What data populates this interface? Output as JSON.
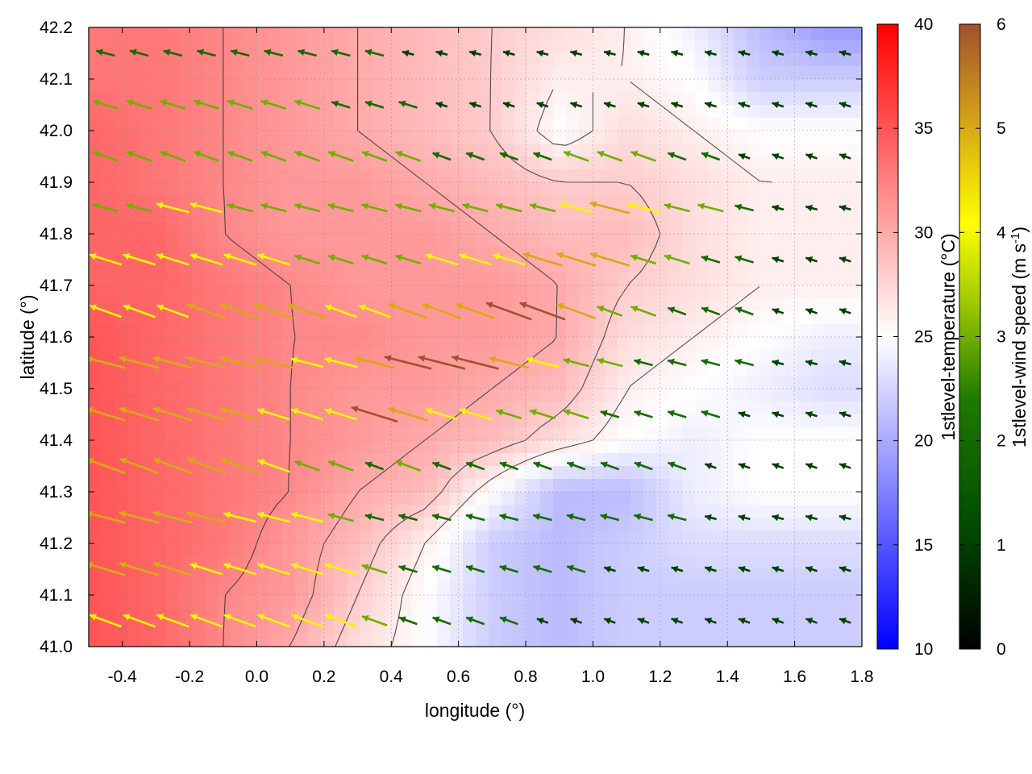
{
  "chart_data": {
    "type": "heatmap",
    "description_overlay": [
      "filled temperature field",
      "black contour lines",
      "colored wind-vector arrows"
    ],
    "xlabel": "longitude (°)",
    "ylabel": "latitude (°)",
    "xlim": [
      -0.5,
      1.8
    ],
    "ylim": [
      41.0,
      42.2
    ],
    "x_ticks": [
      "-0.4",
      "-0.2",
      "0.0",
      "0.2",
      "0.4",
      "0.6",
      "0.8",
      "1.0",
      "1.2",
      "1.4",
      "1.6",
      "1.8"
    ],
    "y_ticks": [
      "41.0",
      "41.1",
      "41.2",
      "41.3",
      "41.4",
      "41.5",
      "41.6",
      "41.7",
      "41.8",
      "41.9",
      "42.0",
      "42.1",
      "42.2"
    ],
    "grid": true,
    "temperature_colorbar": {
      "label": "1stlevel-temperature (°C)",
      "range": [
        10,
        40
      ],
      "ticks": [
        "10",
        "15",
        "20",
        "25",
        "30",
        "35",
        "40"
      ],
      "colors": [
        "#0000ff",
        "#ffffff",
        "#ff0000"
      ]
    },
    "wind_colorbar": {
      "label_main": "1stlevel-wind speed (m s",
      "label_sup": "-1",
      "label_end": ")",
      "range": [
        0,
        6
      ],
      "ticks": [
        "0",
        "1",
        "2",
        "3",
        "4",
        "5",
        "6"
      ],
      "colors": [
        "#000000",
        "#006400",
        "#7ab800",
        "#ffff00",
        "#d4a017",
        "#a0522d"
      ]
    },
    "temperature_field": {
      "grid_lon": [
        -0.5,
        -0.3,
        -0.1,
        0.1,
        0.3,
        0.5,
        0.7,
        0.9,
        1.1,
        1.3,
        1.5,
        1.7
      ],
      "grid_lat": [
        42.2,
        42.1,
        42.0,
        41.9,
        41.8,
        41.7,
        41.6,
        41.5,
        41.4,
        41.3,
        41.2,
        41.1,
        41.0
      ],
      "values": [
        [
          33,
          33,
          32,
          31,
          30,
          29,
          28,
          27,
          26,
          24,
          21,
          19
        ],
        [
          33,
          33,
          32,
          31,
          30,
          29,
          28,
          26,
          26,
          25,
          22,
          22
        ],
        [
          34,
          33,
          32,
          31,
          30,
          29,
          28,
          25,
          27,
          26,
          25,
          25
        ],
        [
          34,
          33,
          32,
          31,
          31,
          30,
          29,
          28,
          28,
          27,
          26,
          26
        ],
        [
          34,
          34,
          32,
          31,
          31,
          31,
          30,
          29,
          29,
          27,
          26,
          26
        ],
        [
          34,
          34,
          33,
          32,
          31,
          31,
          31,
          30,
          28,
          27,
          26,
          26
        ],
        [
          35,
          34,
          33,
          32,
          32,
          31,
          31,
          30,
          27,
          26,
          25,
          24
        ],
        [
          35,
          34,
          33,
          32,
          31,
          31,
          30,
          29,
          26,
          25,
          24,
          23
        ],
        [
          35,
          34,
          33,
          32,
          31,
          30,
          29,
          27,
          25,
          24,
          25,
          25
        ],
        [
          35,
          34,
          33,
          32,
          30,
          29,
          25,
          21,
          21,
          24,
          25,
          25
        ],
        [
          35,
          34,
          33,
          31,
          29,
          26,
          22,
          21,
          22,
          23,
          23,
          23
        ],
        [
          35,
          34,
          32,
          31,
          28,
          25,
          22,
          21,
          22,
          22,
          22,
          22
        ],
        [
          35,
          34,
          32,
          30,
          27,
          25,
          22,
          21,
          22,
          22,
          22,
          22
        ]
      ]
    },
    "wind_vectors": {
      "columns_lon": [
        -0.45,
        -0.35,
        -0.25,
        -0.15,
        -0.05,
        0.05,
        0.15,
        0.25,
        0.35,
        0.45,
        0.55,
        0.65,
        0.75,
        0.85,
        0.95,
        1.05,
        1.15,
        1.25,
        1.35,
        1.45,
        1.55,
        1.65,
        1.75
      ],
      "rows_lat": [
        42.15,
        42.05,
        41.95,
        41.85,
        41.75,
        41.65,
        41.55,
        41.45,
        41.35,
        41.25,
        41.15,
        41.05
      ],
      "direction": "toward west-north-west",
      "speed_m_s": [
        [
          2,
          2,
          2,
          2,
          2,
          2,
          2,
          2,
          2,
          1,
          1,
          1,
          1,
          1,
          1,
          1,
          1,
          1,
          1,
          1,
          1,
          1,
          1
        ],
        [
          3,
          3,
          3,
          3,
          3,
          3,
          3,
          2,
          2,
          2,
          1,
          1,
          1,
          1,
          1,
          1,
          1,
          1,
          1,
          1,
          1,
          1,
          1
        ],
        [
          3,
          3,
          3,
          3,
          3,
          3,
          3,
          3,
          3,
          3,
          2,
          2,
          2,
          2,
          3,
          3,
          3,
          2,
          2,
          1,
          1,
          1,
          1
        ],
        [
          3,
          3,
          4,
          4,
          3,
          3,
          3,
          3,
          3,
          3,
          3,
          3,
          3,
          3,
          4,
          5,
          4,
          3,
          3,
          2,
          1,
          1,
          1
        ],
        [
          4,
          4,
          4,
          4,
          4,
          4,
          3,
          3,
          3,
          3,
          4,
          4,
          4,
          5,
          5,
          5,
          3,
          3,
          2,
          2,
          1,
          1,
          1
        ],
        [
          4,
          4,
          4,
          5,
          5,
          5,
          5,
          4,
          4,
          5,
          5,
          5,
          6,
          6,
          5,
          3,
          3,
          2,
          2,
          2,
          1,
          1,
          1
        ],
        [
          5,
          5,
          5,
          5,
          5,
          5,
          4,
          4,
          5,
          6,
          6,
          6,
          5,
          4,
          3,
          3,
          2,
          2,
          2,
          2,
          1,
          1,
          1
        ],
        [
          5,
          5,
          5,
          5,
          5,
          4,
          4,
          4,
          6,
          5,
          4,
          4,
          3,
          3,
          3,
          2,
          2,
          2,
          2,
          1,
          1,
          1,
          1
        ],
        [
          5,
          5,
          5,
          5,
          5,
          4,
          3,
          3,
          2,
          3,
          2,
          2,
          2,
          2,
          2,
          2,
          2,
          2,
          1,
          1,
          1,
          1,
          1
        ],
        [
          5,
          5,
          5,
          5,
          4,
          4,
          4,
          3,
          2,
          2,
          2,
          2,
          2,
          2,
          2,
          2,
          2,
          2,
          1,
          1,
          1,
          1,
          1
        ],
        [
          5,
          5,
          5,
          4,
          4,
          4,
          4,
          4,
          3,
          2,
          2,
          2,
          2,
          2,
          2,
          1,
          1,
          1,
          1,
          1,
          1,
          1,
          1
        ],
        [
          4,
          4,
          4,
          4,
          4,
          4,
          4,
          4,
          3,
          2,
          2,
          2,
          2,
          1,
          1,
          1,
          1,
          1,
          1,
          1,
          1,
          1,
          1
        ]
      ]
    }
  }
}
